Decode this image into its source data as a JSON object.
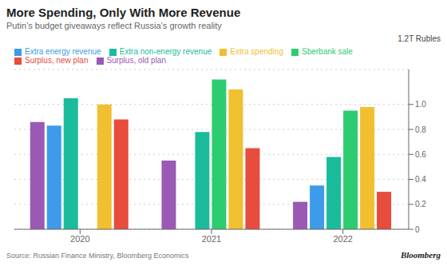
{
  "chart_data": {
    "type": "bar",
    "title": "More Spending, Only With More Revenue",
    "subtitle": "Putin’s budget giveaways reflect Russia’s growth reality",
    "ylabel": "1.2T Rubles",
    "source": "Source:  Russian Finance Ministry, Bloomberg Economics",
    "annotations": [
      "Bloomberg"
    ],
    "categories": [
      "2020",
      "2021",
      "2022"
    ],
    "series": [
      {
        "name": "Surplus, old plan",
        "color": "#9b59b6",
        "values": [
          0.86,
          0.55,
          0.22
        ]
      },
      {
        "name": "Extra energy revenue",
        "color": "#3d9be9",
        "values": [
          0.83,
          null,
          0.35
        ]
      },
      {
        "name": "Extra non-energy revenue",
        "color": "#1abc9c",
        "values": [
          1.05,
          0.78,
          0.58
        ]
      },
      {
        "name": "Sberbank sale",
        "color": "#2ecc71",
        "values": [
          null,
          1.2,
          0.95
        ]
      },
      {
        "name": "Extra spending",
        "color": "#f0c030",
        "values": [
          1.0,
          1.12,
          0.98
        ]
      },
      {
        "name": "Surplus, new plan",
        "color": "#e74c3c",
        "values": [
          0.88,
          0.65,
          0.3
        ]
      }
    ],
    "ylim": [
      0,
      1.28
    ],
    "yticks": [
      0,
      0.2,
      0.4,
      0.6,
      0.8,
      {
        "value": 1.0,
        "label": "1.0"
      }
    ],
    "grid": true,
    "legend": "upper left"
  }
}
